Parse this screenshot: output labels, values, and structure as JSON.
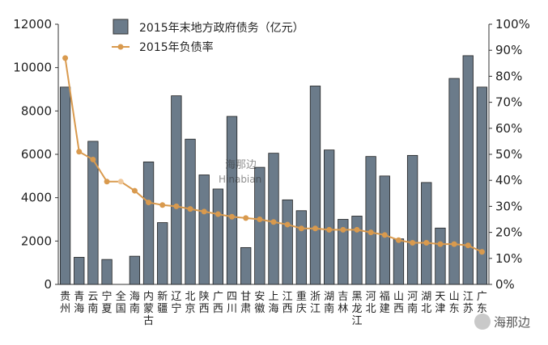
{
  "chart_data": {
    "type": "bar",
    "categories": [
      "贵州",
      "青海",
      "云南",
      "宁夏",
      "全国",
      "海南",
      "内蒙古",
      "新疆",
      "辽宁",
      "北京",
      "陕西",
      "广西",
      "四川",
      "甘肃",
      "安徽",
      "上海",
      "江西",
      "重庆",
      "浙江",
      "湖南",
      "吉林",
      "黑龙江",
      "河北",
      "福建",
      "山西",
      "河南",
      "湖北",
      "天津",
      "山东",
      "江苏",
      "广东"
    ],
    "series": [
      {
        "name": "2015年末地方政府债务（亿元）",
        "type": "bar",
        "axis": "left",
        "color": "#6b7b8a",
        "values": [
          9100,
          1250,
          6600,
          1150,
          null,
          1300,
          5650,
          2850,
          8700,
          6700,
          5050,
          4400,
          7750,
          1700,
          5400,
          6050,
          3900,
          3400,
          9150,
          6200,
          3000,
          3150,
          5900,
          5000,
          2100,
          5950,
          4700,
          2600,
          9500,
          10550,
          9100
        ]
      },
      {
        "name": "2015年负债率",
        "type": "line",
        "axis": "right",
        "color": "#d99a4e",
        "values": [
          87,
          51,
          48,
          39.5,
          39.5,
          36,
          31.5,
          30.5,
          30,
          29,
          28,
          27,
          26,
          25.5,
          25,
          24,
          23,
          21.5,
          21.5,
          21,
          21,
          21,
          20,
          19,
          17,
          16,
          16,
          15.5,
          15.5,
          15,
          12.5
        ]
      }
    ],
    "ylim_left": [
      0,
      12000
    ],
    "yticks_left": [
      "0",
      "2000",
      "4000",
      "6000",
      "8000",
      "10000",
      "12000"
    ],
    "ylim_right": [
      0,
      100
    ],
    "yticks_right": [
      "0%",
      "10%",
      "20%",
      "30%",
      "40%",
      "50%",
      "60%",
      "70%",
      "80%",
      "90%",
      "100%"
    ],
    "highlight_category": "全国",
    "highlight_color": "#f0c89a",
    "legend_position": "top-left"
  },
  "legend": {
    "bar_label": "2015年末地方政府债务（亿元）",
    "line_label": "2015年负债率"
  },
  "watermark": {
    "center_text": "海那边",
    "center_sub": "Hinabian",
    "corner_text": "海那边"
  }
}
